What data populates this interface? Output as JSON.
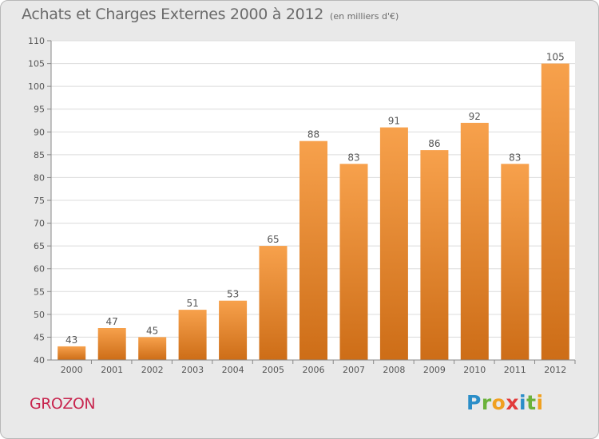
{
  "header": {
    "title": "Achats et Charges Externes 2000 à 2012",
    "subtitle": "(en milliers d'€)"
  },
  "footer": {
    "commune": "GROZON",
    "logo_text": "Proxiti"
  },
  "colors": {
    "bar": "#f0903a",
    "bar_dark": "#c86a18",
    "plot_background": "#ffffff",
    "frame_background": "#e9e9e9",
    "commune_color": "#c8264f"
  },
  "chart_data": {
    "type": "bar",
    "title": "Achats et Charges Externes 2000 à 2012",
    "subtitle": "(en milliers d'€)",
    "categories": [
      "2000",
      "2001",
      "2002",
      "2003",
      "2004",
      "2005",
      "2006",
      "2007",
      "2008",
      "2009",
      "2010",
      "2011",
      "2012"
    ],
    "values": [
      43,
      47,
      45,
      51,
      53,
      65,
      88,
      83,
      91,
      86,
      92,
      83,
      105
    ],
    "ylim": [
      40,
      110
    ],
    "yticks": [
      40,
      45,
      50,
      55,
      60,
      65,
      70,
      75,
      80,
      85,
      90,
      95,
      100,
      105,
      110
    ],
    "grid": true,
    "data_labels": true
  }
}
